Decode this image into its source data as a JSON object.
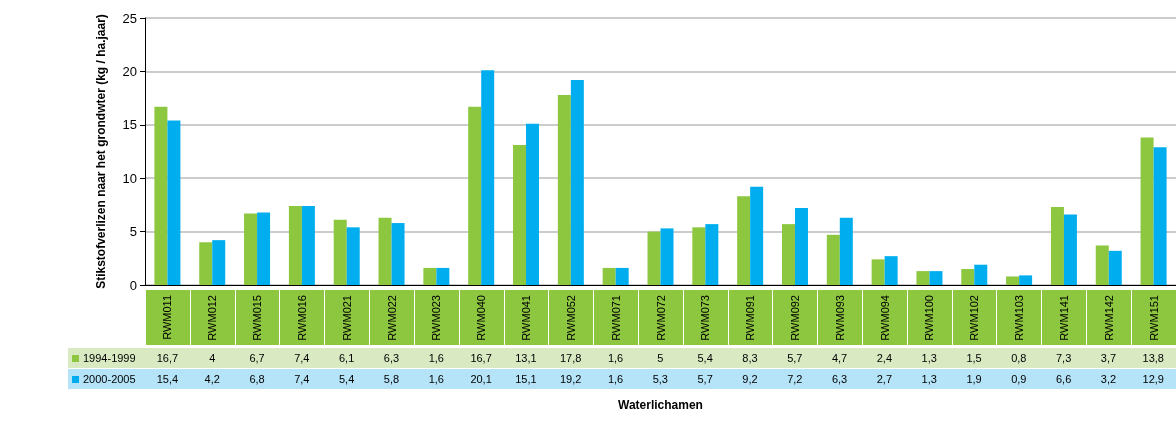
{
  "chart_data": {
    "type": "bar",
    "ylabel": "Stikstofverlizen naar het grondwter (kg / ha.jaar)",
    "xlabel": "Waterlichamen",
    "categories": [
      "RWM011",
      "RWM012",
      "RWM015",
      "RWM016",
      "RWM021",
      "RWM022",
      "RWM023",
      "RWM040",
      "RWM041",
      "RWM052",
      "RWM071",
      "RWM072",
      "RWM073",
      "RWM091",
      "RWM092",
      "RWM093",
      "RWM094",
      "RWM100",
      "RWM102",
      "RWM103",
      "RWM141",
      "RWM142",
      "RWM151"
    ],
    "series": [
      {
        "name": "1994-1999",
        "color": "#8dc63f",
        "values": [
          16.7,
          4,
          6.7,
          7.4,
          6.1,
          6.3,
          1.6,
          16.7,
          13.1,
          17.8,
          1.6,
          5,
          5.4,
          8.3,
          5.7,
          4.7,
          2.4,
          1.3,
          1.5,
          0.8,
          7.3,
          3.7,
          13.8
        ],
        "value_labels": [
          "16,7",
          "4",
          "6,7",
          "7,4",
          "6,1",
          "6,3",
          "1,6",
          "16,7",
          "13,1",
          "17,8",
          "1,6",
          "5",
          "5,4",
          "8,3",
          "5,7",
          "4,7",
          "2,4",
          "1,3",
          "1,5",
          "0,8",
          "7,3",
          "3,7",
          "13,8"
        ]
      },
      {
        "name": "2000-2005",
        "color": "#00aeef",
        "values": [
          15.4,
          4.2,
          6.8,
          7.4,
          5.4,
          5.8,
          1.6,
          20.1,
          15.1,
          19.2,
          1.6,
          5.3,
          5.7,
          9.2,
          7.2,
          6.3,
          2.7,
          1.3,
          1.9,
          0.9,
          6.6,
          3.2,
          12.9
        ],
        "value_labels": [
          "15,4",
          "4,2",
          "6,8",
          "7,4",
          "5,4",
          "5,8",
          "1,6",
          "20,1",
          "15,1",
          "19,2",
          "1,6",
          "5,3",
          "5,7",
          "9,2",
          "7,2",
          "6,3",
          "2,7",
          "1,3",
          "1,9",
          "0,9",
          "6,6",
          "3,2",
          "12,9"
        ]
      }
    ],
    "ylim": [
      0,
      25
    ],
    "yticks": [
      0,
      5,
      10,
      15,
      20,
      25
    ],
    "grid": "y",
    "legend": "bottom left"
  }
}
